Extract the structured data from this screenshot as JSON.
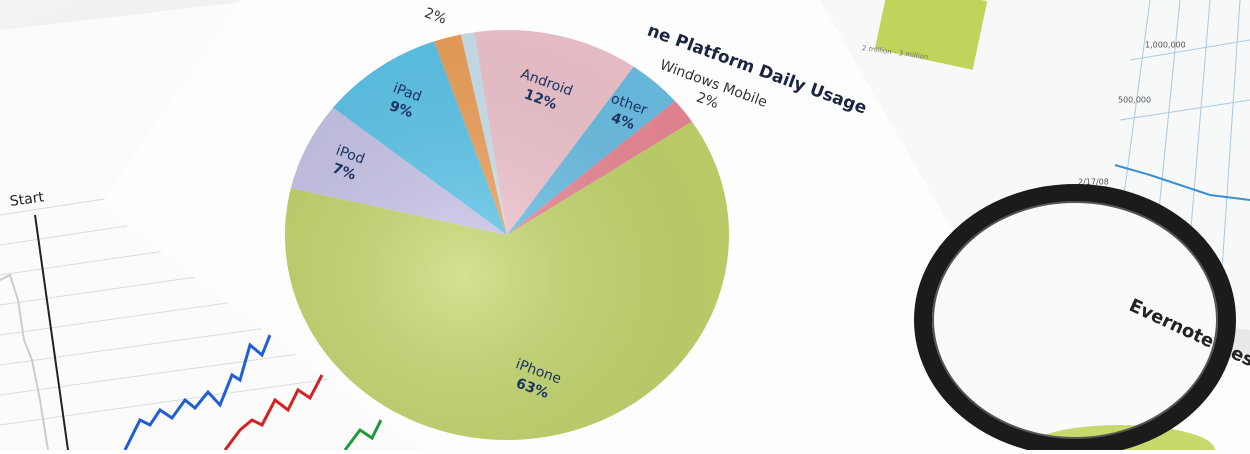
{
  "chart_data": {
    "type": "pie",
    "title": "ne Platform Daily Usage",
    "categories": [
      null,
      "Android",
      "other",
      "Windows Mobile",
      "iPhone",
      "iPod",
      "iPad",
      null
    ],
    "values": [
      1,
      12,
      4,
      2,
      63,
      7,
      9,
      2
    ],
    "value_labels": [
      null,
      "12%",
      "4%",
      "2%",
      "63%",
      "7%",
      "9%",
      "2%"
    ],
    "colors": [
      "#cfe8f4",
      "#f6c8d2",
      "#6cc3ea",
      "#f08a98",
      "#c6d96c",
      "#cbc8ee",
      "#5dc9ef",
      "#f4a45c"
    ],
    "start_angle": -12
  },
  "paper_texts": {
    "start": "Start",
    "tick_top": "1,000,000",
    "tick_mid": "500,000",
    "range": "2 million - 3 million",
    "date": "2/17/08",
    "brand": "Evernote Desk"
  }
}
